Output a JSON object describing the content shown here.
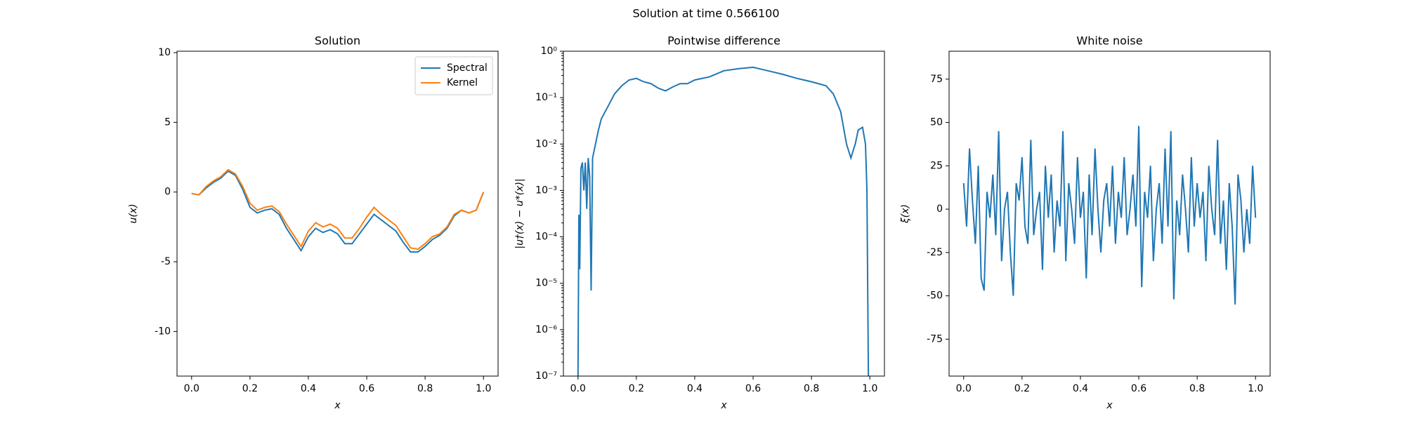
{
  "title": "Solution at time 0.566100",
  "chart_data": [
    {
      "type": "line",
      "title": "Solution",
      "xlabel": "x",
      "ylabel": "u(x)",
      "xlim": [
        -0.05,
        1.05
      ],
      "ylim": [
        -13.2,
        10.1
      ],
      "xticks": [
        {
          "value": 0,
          "label": "0.0"
        },
        0.2,
        0.4,
        0.6,
        0.8,
        {
          "value": 1,
          "label": "1.0"
        }
      ],
      "yticks": [
        -10,
        -5,
        0,
        5,
        10
      ],
      "legend": "upper right",
      "x": [
        0,
        0.025,
        0.05,
        0.075,
        0.1,
        0.125,
        0.15,
        0.175,
        0.2,
        0.225,
        0.25,
        0.275,
        0.3,
        0.325,
        0.35,
        0.375,
        0.4,
        0.425,
        0.45,
        0.475,
        0.5,
        0.525,
        0.55,
        0.575,
        0.6,
        0.625,
        0.65,
        0.675,
        0.7,
        0.725,
        0.75,
        0.775,
        0.8,
        0.825,
        0.85,
        0.875,
        0.9,
        0.925,
        0.95,
        0.975,
        1.0
      ],
      "series": [
        {
          "name": "Spectral",
          "color": "#1f77b4",
          "values": [
            -0.1,
            -0.2,
            0.3,
            0.7,
            1.0,
            1.5,
            1.2,
            0.2,
            -1.1,
            -1.5,
            -1.3,
            -1.2,
            -1.6,
            -2.6,
            -3.4,
            -4.2,
            -3.2,
            -2.6,
            -2.9,
            -2.7,
            -3.0,
            -3.7,
            -3.7,
            -3.0,
            -2.3,
            -1.6,
            -2.0,
            -2.4,
            -2.8,
            -3.6,
            -4.3,
            -4.3,
            -3.9,
            -3.4,
            -3.1,
            -2.6,
            -1.7,
            -1.3,
            -1.5,
            -1.3,
            0.0
          ]
        },
        {
          "name": "Kernel",
          "color": "#ff7f0e",
          "values": [
            -0.1,
            -0.2,
            0.4,
            0.8,
            1.1,
            1.6,
            1.3,
            0.4,
            -0.8,
            -1.3,
            -1.1,
            -1.0,
            -1.4,
            -2.3,
            -3.1,
            -3.9,
            -2.8,
            -2.2,
            -2.5,
            -2.3,
            -2.6,
            -3.3,
            -3.3,
            -2.6,
            -1.8,
            -1.1,
            -1.6,
            -2.0,
            -2.4,
            -3.2,
            -4.0,
            -4.1,
            -3.7,
            -3.2,
            -3.0,
            -2.5,
            -1.6,
            -1.3,
            -1.5,
            -1.3,
            0.0
          ]
        }
      ]
    },
    {
      "type": "line",
      "title": "Pointwise difference",
      "xlabel": "x",
      "ylabel": "|u†(x) − u*(x)|",
      "yscale": "log",
      "xlim": [
        -0.05,
        1.05
      ],
      "ylim": [
        1e-07,
        1
      ],
      "xticks": [
        {
          "value": 0,
          "label": "0.0"
        },
        0.2,
        0.4,
        0.6,
        0.8,
        {
          "value": 1,
          "label": "1.0"
        }
      ],
      "yticks": [
        {
          "value": 1e-07,
          "label": "10⁻⁷"
        },
        {
          "value": 1e-06,
          "label": "10⁻⁶"
        },
        {
          "value": 1e-05,
          "label": "10⁻⁵"
        },
        {
          "value": 0.0001,
          "label": "10⁻⁴"
        },
        {
          "value": 0.001,
          "label": "10⁻³"
        },
        {
          "value": 0.01,
          "label": "10⁻²"
        },
        {
          "value": 0.1,
          "label": "10⁻¹"
        },
        {
          "value": 1,
          "label": "10⁰"
        }
      ],
      "x": [
        0,
        0.003,
        0.006,
        0.01,
        0.015,
        0.02,
        0.025,
        0.03,
        0.035,
        0.04,
        0.045,
        0.05,
        0.06,
        0.07,
        0.08,
        0.1,
        0.125,
        0.15,
        0.175,
        0.2,
        0.225,
        0.25,
        0.275,
        0.3,
        0.325,
        0.35,
        0.375,
        0.4,
        0.45,
        0.5,
        0.55,
        0.6,
        0.65,
        0.7,
        0.75,
        0.8,
        0.85,
        0.875,
        0.9,
        0.92,
        0.935,
        0.95,
        0.96,
        0.975,
        0.985,
        0.99,
        0.995
      ],
      "series": [
        {
          "color": "#1f77b4",
          "values": [
            1e-07,
            0.0003,
            2e-05,
            0.003,
            0.004,
            0.001,
            0.004,
            0.0004,
            0.005,
            0.002,
            7e-06,
            0.005,
            0.01,
            0.02,
            0.035,
            0.06,
            0.12,
            0.18,
            0.24,
            0.26,
            0.22,
            0.2,
            0.16,
            0.14,
            0.17,
            0.2,
            0.2,
            0.24,
            0.28,
            0.38,
            0.42,
            0.45,
            0.38,
            0.32,
            0.26,
            0.22,
            0.18,
            0.12,
            0.05,
            0.01,
            0.005,
            0.01,
            0.02,
            0.023,
            0.01,
            0.001,
            1e-07
          ]
        }
      ]
    },
    {
      "type": "line",
      "title": "White noise",
      "xlabel": "x",
      "ylabel": "ξ(x)",
      "xlim": [
        -0.05,
        1.05
      ],
      "ylim": [
        -96.3,
        91.1
      ],
      "xticks": [
        {
          "value": 0,
          "label": "0.0"
        },
        0.2,
        0.4,
        0.6,
        0.8,
        {
          "value": 1,
          "label": "1.0"
        }
      ],
      "yticks": [
        -75,
        -50,
        -25,
        0,
        25,
        50,
        75
      ],
      "x": [
        0,
        0.01,
        0.02,
        0.03,
        0.04,
        0.05,
        0.06,
        0.07,
        0.08,
        0.09,
        0.1,
        0.11,
        0.12,
        0.13,
        0.14,
        0.15,
        0.16,
        0.17,
        0.18,
        0.19,
        0.2,
        0.21,
        0.22,
        0.23,
        0.24,
        0.25,
        0.26,
        0.27,
        0.28,
        0.29,
        0.3,
        0.31,
        0.32,
        0.33,
        0.34,
        0.35,
        0.36,
        0.37,
        0.38,
        0.39,
        0.4,
        0.41,
        0.42,
        0.43,
        0.44,
        0.45,
        0.46,
        0.47,
        0.48,
        0.49,
        0.5,
        0.51,
        0.52,
        0.53,
        0.54,
        0.55,
        0.56,
        0.57,
        0.58,
        0.59,
        0.6,
        0.61,
        0.62,
        0.63,
        0.64,
        0.65,
        0.66,
        0.67,
        0.68,
        0.69,
        0.7,
        0.71,
        0.72,
        0.73,
        0.74,
        0.75,
        0.76,
        0.77,
        0.78,
        0.79,
        0.8,
        0.81,
        0.82,
        0.83,
        0.84,
        0.85,
        0.86,
        0.87,
        0.88,
        0.89,
        0.9,
        0.91,
        0.92,
        0.93,
        0.94,
        0.95,
        0.96,
        0.97,
        0.98,
        0.99,
        1.0
      ],
      "series": [
        {
          "color": "#1f77b4",
          "values": [
            15,
            -10,
            35,
            5,
            -20,
            25,
            -40,
            -47,
            10,
            -5,
            20,
            -15,
            45,
            -30,
            0,
            10,
            -25,
            -50,
            15,
            5,
            30,
            -10,
            -20,
            40,
            -15,
            0,
            10,
            -35,
            25,
            -5,
            20,
            -25,
            5,
            -10,
            45,
            -30,
            15,
            0,
            -20,
            30,
            -5,
            10,
            -40,
            20,
            -15,
            35,
            0,
            -25,
            5,
            15,
            -10,
            25,
            -20,
            10,
            -5,
            30,
            -15,
            0,
            20,
            -10,
            48,
            -45,
            10,
            -5,
            25,
            -30,
            0,
            15,
            -20,
            35,
            -10,
            45,
            -52,
            5,
            -15,
            20,
            0,
            -25,
            30,
            -10,
            15,
            -5,
            10,
            -30,
            25,
            0,
            -15,
            40,
            -20,
            5,
            -35,
            15,
            -10,
            -55,
            20,
            5,
            -25,
            0,
            -20,
            25,
            -5
          ]
        }
      ]
    }
  ]
}
